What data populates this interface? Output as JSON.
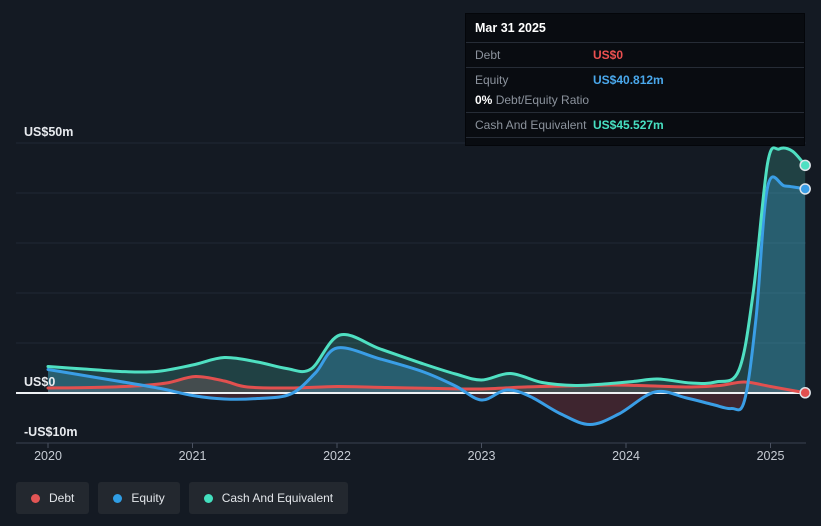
{
  "tooltip": {
    "date": "Mar 31 2025",
    "debt_label": "Debt",
    "debt_value": "US$0",
    "equity_label": "Equity",
    "equity_value": "US$40.812m",
    "ratio_value": "0%",
    "ratio_label": "Debt/Equity Ratio",
    "cash_label": "Cash And Equivalent",
    "cash_value": "US$45.527m"
  },
  "legend": [
    {
      "label": "Debt",
      "color": "#e25555"
    },
    {
      "label": "Equity",
      "color": "#2f9de4"
    },
    {
      "label": "Cash And Equivalent",
      "color": "#43dfbe"
    }
  ],
  "colors": {
    "background": "#141a23",
    "gridline": "#212835",
    "axis_line": "#3a4150",
    "tick": "#4a5160",
    "zero_line": "#eef1f4",
    "y_label": "#e8ebef",
    "x_label": "#c6cbd3",
    "debt": "#e2504f",
    "equity": "#3a9ee6",
    "cash": "#4fe0c2",
    "fill_equity_pos": "rgba(58,158,230,0.28)",
    "fill_cash_pos": "rgba(80,225,198,0.20)",
    "fill_negative_equity": "rgba(230,85,95,0.20)",
    "fill_debt": "rgba(230,85,95,0.22)"
  },
  "chart_data": {
    "type": "area",
    "x_unit": "year",
    "y_unit": "US$ millions",
    "x_range": [
      2020,
      2025.25
    ],
    "y_range": [
      -10,
      50
    ],
    "grid": "horizontal-only",
    "legend_position": "bottom-left",
    "x_ticks": [
      2020,
      2021,
      2022,
      2023,
      2024,
      2025
    ],
    "y_tick_labels": [
      {
        "label": "US$50m",
        "value": 50
      },
      {
        "label": "US$0",
        "value": 0
      },
      {
        "label": "-US$10m",
        "value": -10
      }
    ],
    "series": [
      {
        "name": "Debt",
        "color": "#e2504f",
        "end_value_label": "US$0",
        "points": [
          [
            2020.0,
            1.0
          ],
          [
            2020.3,
            1.1
          ],
          [
            2020.6,
            1.4
          ],
          [
            2020.82,
            2.0
          ],
          [
            2021.02,
            3.3
          ],
          [
            2021.22,
            2.4
          ],
          [
            2021.38,
            1.2
          ],
          [
            2021.7,
            1.0
          ],
          [
            2022.0,
            1.3
          ],
          [
            2022.35,
            1.1
          ],
          [
            2022.7,
            0.9
          ],
          [
            2023.0,
            0.8
          ],
          [
            2023.3,
            1.2
          ],
          [
            2023.6,
            1.4
          ],
          [
            2023.9,
            1.6
          ],
          [
            2024.2,
            1.4
          ],
          [
            2024.45,
            1.2
          ],
          [
            2024.65,
            1.5
          ],
          [
            2024.82,
            2.2
          ],
          [
            2025.0,
            1.3
          ],
          [
            2025.24,
            0.05
          ]
        ]
      },
      {
        "name": "Equity",
        "color": "#3a9ee6",
        "end_value_label": "US$40.812m",
        "points": [
          [
            2020.0,
            4.7
          ],
          [
            2020.25,
            3.5
          ],
          [
            2020.5,
            2.3
          ],
          [
            2020.78,
            0.9
          ],
          [
            2021.0,
            -0.5
          ],
          [
            2021.22,
            -1.2
          ],
          [
            2021.45,
            -1.1
          ],
          [
            2021.68,
            -0.2
          ],
          [
            2021.85,
            4.0
          ],
          [
            2022.0,
            9.0
          ],
          [
            2022.3,
            6.8
          ],
          [
            2022.6,
            4.2
          ],
          [
            2022.82,
            1.4
          ],
          [
            2023.0,
            -1.4
          ],
          [
            2023.17,
            0.6
          ],
          [
            2023.33,
            -0.6
          ],
          [
            2023.55,
            -4.2
          ],
          [
            2023.75,
            -6.3
          ],
          [
            2023.95,
            -4.2
          ],
          [
            2024.2,
            0.2
          ],
          [
            2024.42,
            -1.0
          ],
          [
            2024.6,
            -2.3
          ],
          [
            2024.73,
            -3.1
          ],
          [
            2024.82,
            -1.5
          ],
          [
            2024.9,
            15
          ],
          [
            2024.98,
            41.2
          ],
          [
            2025.1,
            41.4
          ],
          [
            2025.24,
            40.812
          ]
        ]
      },
      {
        "name": "Cash And Equivalent",
        "color": "#4fe0c2",
        "end_value_label": "US$45.527m",
        "points": [
          [
            2020.0,
            5.3
          ],
          [
            2020.25,
            4.8
          ],
          [
            2020.5,
            4.3
          ],
          [
            2020.75,
            4.3
          ],
          [
            2021.0,
            5.6
          ],
          [
            2021.22,
            7.1
          ],
          [
            2021.45,
            6.2
          ],
          [
            2021.65,
            4.9
          ],
          [
            2021.82,
            4.8
          ],
          [
            2022.02,
            11.6
          ],
          [
            2022.3,
            8.8
          ],
          [
            2022.6,
            5.8
          ],
          [
            2022.82,
            3.8
          ],
          [
            2023.0,
            2.6
          ],
          [
            2023.2,
            3.9
          ],
          [
            2023.42,
            2.1
          ],
          [
            2023.65,
            1.5
          ],
          [
            2023.85,
            1.8
          ],
          [
            2024.05,
            2.3
          ],
          [
            2024.22,
            2.8
          ],
          [
            2024.45,
            2.0
          ],
          [
            2024.62,
            2.2
          ],
          [
            2024.78,
            4.5
          ],
          [
            2024.88,
            20
          ],
          [
            2024.98,
            46.0
          ],
          [
            2025.06,
            48.8
          ],
          [
            2025.15,
            48.4
          ],
          [
            2025.24,
            45.527
          ]
        ]
      }
    ]
  }
}
